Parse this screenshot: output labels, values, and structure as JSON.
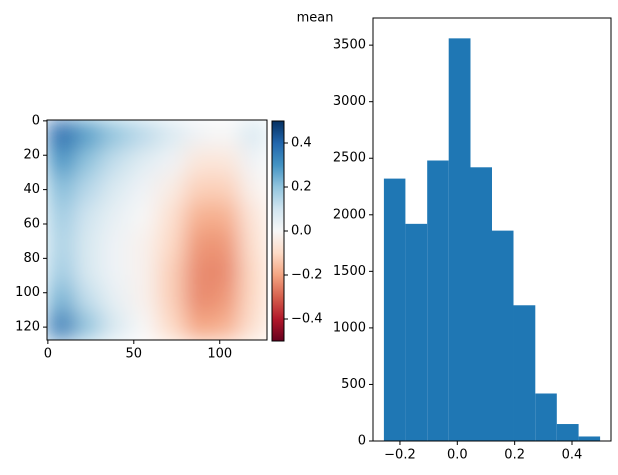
{
  "chart_data": [
    {
      "type": "heatmap",
      "xlim": [
        -0.5,
        127.5
      ],
      "ylim": [
        127.5,
        -0.5
      ],
      "xticks": [
        0,
        50,
        100
      ],
      "yticks": [
        0,
        20,
        40,
        60,
        80,
        100,
        120
      ],
      "z": [
        [
          0.4,
          0.28,
          0.2,
          0.14,
          0.08,
          0.02,
          0.0,
          0.08
        ],
        [
          0.3,
          0.2,
          0.12,
          0.06,
          0.02,
          -0.06,
          -0.06,
          0.02
        ],
        [
          0.22,
          0.14,
          0.07,
          0.02,
          -0.04,
          -0.12,
          -0.12,
          -0.02
        ],
        [
          0.18,
          0.1,
          0.04,
          0.0,
          -0.08,
          -0.18,
          -0.18,
          -0.06
        ],
        [
          0.16,
          0.08,
          0.02,
          -0.02,
          -0.1,
          -0.22,
          -0.22,
          -0.08
        ],
        [
          0.18,
          0.08,
          0.02,
          -0.02,
          -0.12,
          -0.24,
          -0.24,
          -0.1
        ],
        [
          0.24,
          0.12,
          0.04,
          -0.02,
          -0.12,
          -0.24,
          -0.22,
          -0.1
        ],
        [
          0.36,
          0.2,
          0.08,
          0.0,
          -0.1,
          -0.2,
          -0.18,
          -0.08
        ]
      ],
      "clim": [
        -0.5,
        0.5
      ],
      "colormap": [
        "#67001f",
        "#b2182b",
        "#d6604d",
        "#f4a582",
        "#fddbc7",
        "#f7f7f7",
        "#d1e5f0",
        "#92c5de",
        "#4393c3",
        "#2166ac",
        "#053061"
      ],
      "cticks": [
        0.4,
        0.2,
        {
          "value": 0,
          "label": "0.0"
        },
        {
          "value": -0.2,
          "label": "−0.2"
        },
        {
          "value": -0.4,
          "label": "−0.4"
        }
      ]
    },
    {
      "type": "histogram",
      "title": "mean",
      "color": "#1f77b4",
      "bins": [
        -0.256,
        -0.181,
        -0.105,
        -0.03,
        0.046,
        0.121,
        0.196,
        0.272,
        0.347,
        0.423,
        0.498
      ],
      "counts": [
        2320,
        1920,
        2480,
        3560,
        2420,
        1860,
        1200,
        420,
        150,
        40
      ],
      "xlim": [
        -0.294,
        0.536
      ],
      "ylim": [
        0,
        3740
      ],
      "xticks": [
        {
          "value": -0.2,
          "label": "−0.2"
        },
        {
          "value": 0,
          "label": "0.0"
        },
        0.2,
        0.4
      ],
      "yticks": [
        0,
        500,
        1000,
        1500,
        2000,
        2500,
        3000,
        3500
      ]
    }
  ]
}
